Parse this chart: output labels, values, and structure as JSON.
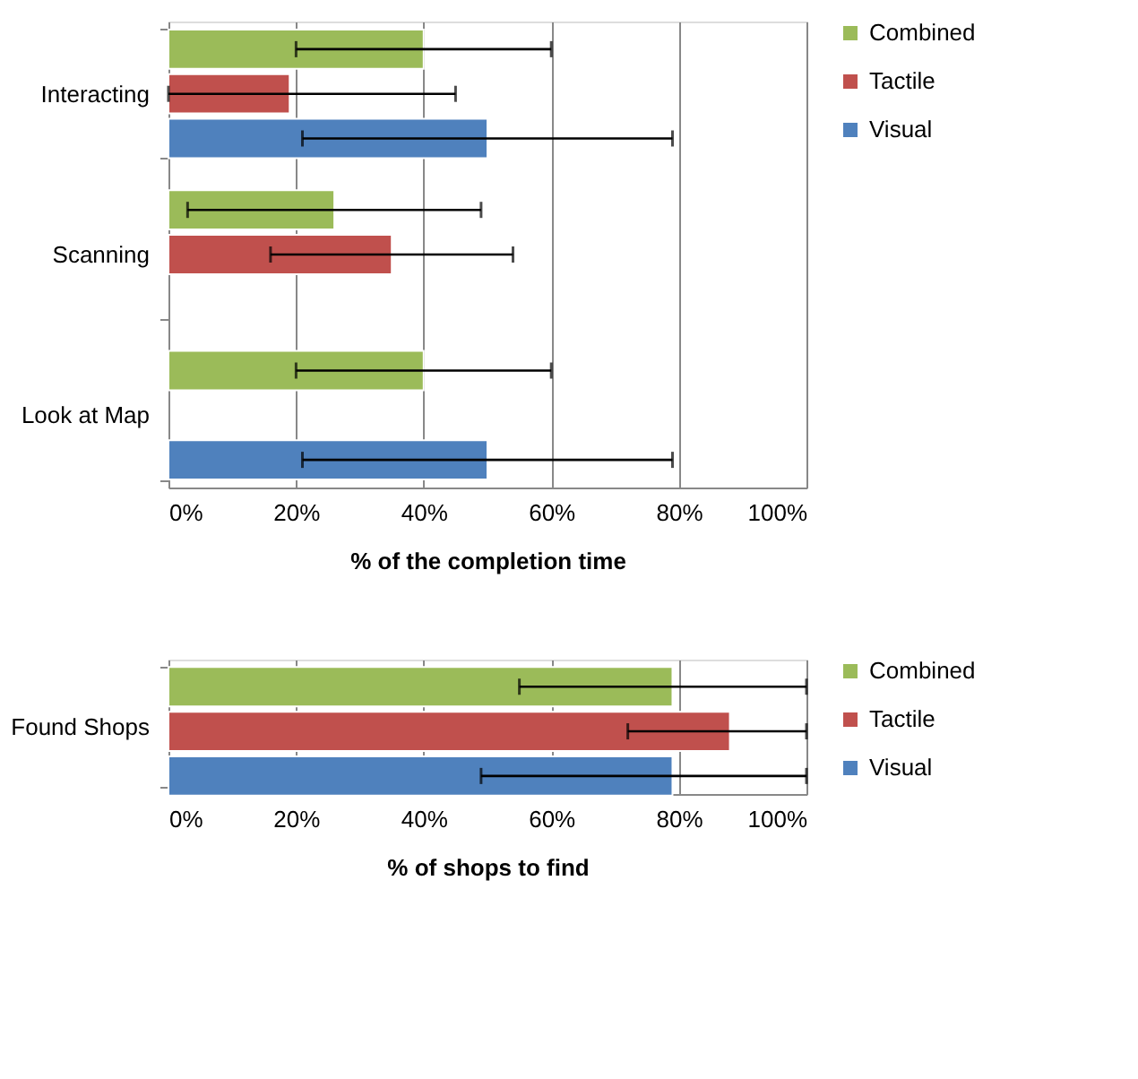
{
  "chart_data": [
    {
      "type": "bar",
      "orientation": "horizontal",
      "categories": [
        "Interacting",
        "Scanning",
        "Look at Map"
      ],
      "xlabel": "% of the completion time",
      "xlim": [
        0,
        100
      ],
      "xticks": [
        {
          "value": 0,
          "label": "0%"
        },
        {
          "value": 20,
          "label": "20%"
        },
        {
          "value": 40,
          "label": "40%"
        },
        {
          "value": 60,
          "label": "60%"
        },
        {
          "value": 80,
          "label": "80%"
        },
        {
          "value": 100,
          "label": "100%"
        }
      ],
      "grid": "x",
      "legend": "right",
      "series": [
        {
          "name": "Combined",
          "color": "#9bbb59",
          "values": [
            40,
            26,
            40
          ],
          "errors": [
            [
              20,
              60
            ],
            [
              3,
              49
            ],
            [
              20,
              60
            ]
          ]
        },
        {
          "name": "Tactile",
          "color": "#c0504d",
          "values": [
            19,
            35,
            null
          ],
          "errors": [
            [
              0,
              45
            ],
            [
              16,
              54
            ],
            null
          ]
        },
        {
          "name": "Visual",
          "color": "#4f81bd",
          "values": [
            50,
            null,
            50
          ],
          "errors": [
            [
              21,
              79
            ],
            null,
            [
              21,
              79
            ]
          ]
        }
      ]
    },
    {
      "type": "bar",
      "orientation": "horizontal",
      "categories": [
        "Found Shops"
      ],
      "xlabel": "% of shops to find",
      "xlim": [
        0,
        100
      ],
      "xticks": [
        {
          "value": 0,
          "label": "0%"
        },
        {
          "value": 20,
          "label": "20%"
        },
        {
          "value": 40,
          "label": "40%"
        },
        {
          "value": 60,
          "label": "60%"
        },
        {
          "value": 80,
          "label": "80%"
        },
        {
          "value": 100,
          "label": "100%"
        }
      ],
      "grid": "x",
      "legend": "right",
      "series": [
        {
          "name": "Combined",
          "color": "#9bbb59",
          "values": [
            79
          ],
          "errors": [
            [
              55,
              100
            ]
          ]
        },
        {
          "name": "Tactile",
          "color": "#c0504d",
          "values": [
            88
          ],
          "errors": [
            [
              72,
              100
            ]
          ]
        },
        {
          "name": "Visual",
          "color": "#4f81bd",
          "values": [
            79
          ],
          "errors": [
            [
              49,
              100
            ]
          ]
        }
      ]
    }
  ]
}
